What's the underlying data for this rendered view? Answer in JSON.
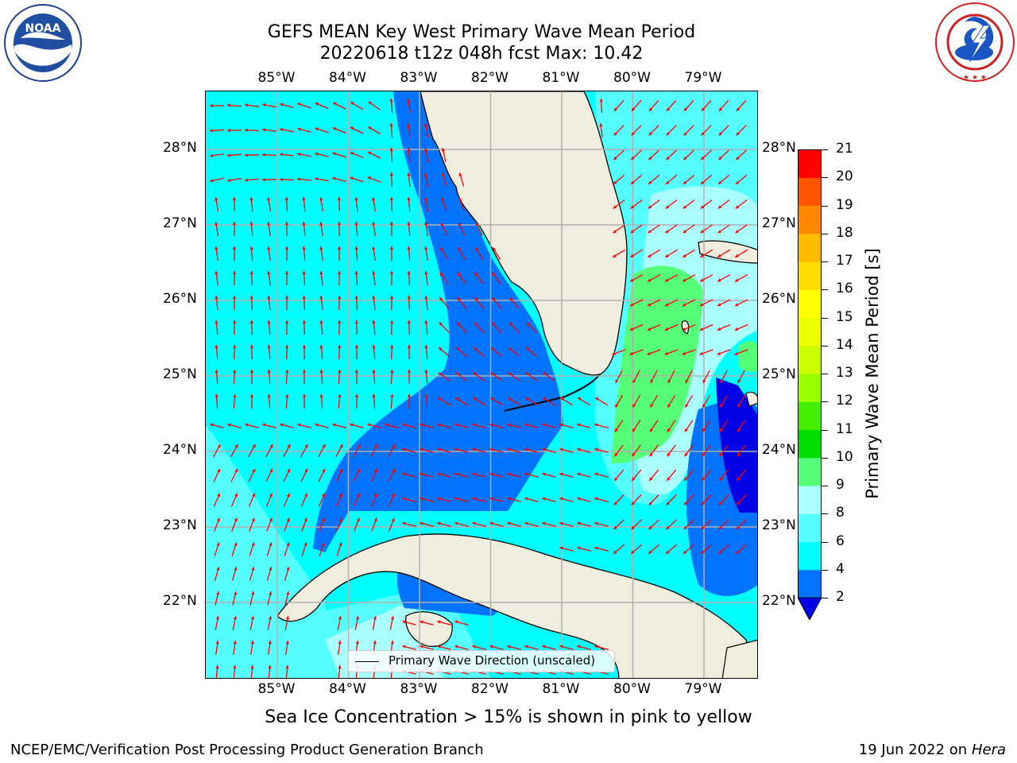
{
  "title_line1": "GEFS MEAN Key West Primary Wave Mean Period",
  "title_line2": "20220618 t12z 048h fcst   Max: 10.42",
  "logos": {
    "noaa_text": "NOAA",
    "noaa_ring_text": "NATIONAL OCEANIC AND ATMOSPHERIC ADMINISTRATION · U.S. DEPARTMENT OF COMMERCE",
    "nws_ring_text": "NATIONAL WEATHER SERVICE"
  },
  "lon_ticks": [
    "85°W",
    "84°W",
    "83°W",
    "82°W",
    "81°W",
    "80°W",
    "79°W"
  ],
  "lat_ticks": [
    "28°N",
    "27°N",
    "26°N",
    "25°N",
    "24°N",
    "23°N",
    "22°N"
  ],
  "legend_label": "Primary Wave Direction (unscaled)",
  "colorbar": {
    "label": "Primary Wave Mean Period [s]",
    "levels": [
      "2",
      "4",
      "6",
      "8",
      "9",
      "10",
      "11",
      "12",
      "13",
      "14",
      "15",
      "16",
      "17",
      "18",
      "19",
      "20",
      "21"
    ],
    "colors": [
      "#0000e6",
      "#0073ff",
      "#00ffff",
      "#55ffff",
      "#aaffff",
      "#55ff77",
      "#00dd00",
      "#44ee00",
      "#99ff00",
      "#ccff00",
      "#eeff00",
      "#ffff00",
      "#ffdd00",
      "#ffbb00",
      "#ff8800",
      "#ff5500",
      "#ff0000"
    ]
  },
  "colors": {
    "land": "#efedde",
    "arrow": "#ff0000",
    "grid": "#b0b0b0"
  },
  "footnote": "Sea Ice Concentration > 15% is shown in pink to yellow",
  "footer_left": "NCEP/EMC/Verification Post Processing Product Generation Branch",
  "footer_date": "19 Jun 2022 on",
  "footer_machine": "Hera"
}
